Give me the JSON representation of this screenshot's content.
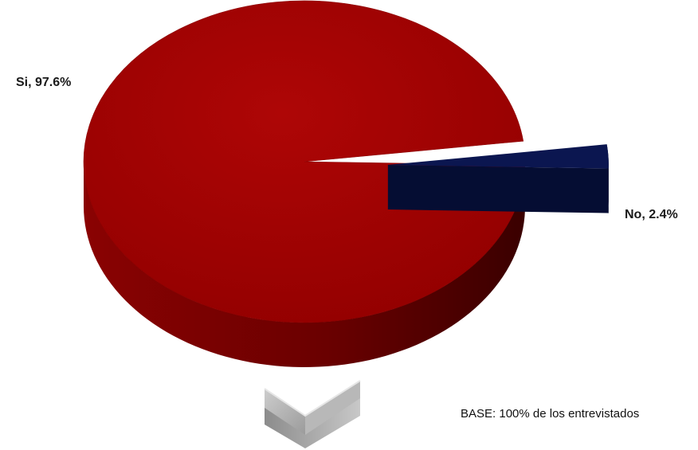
{
  "chart_data": {
    "type": "pie",
    "style": "3d-exploded",
    "categories": [
      "Si",
      "No"
    ],
    "values": [
      97.6,
      2.4
    ],
    "labels": [
      "Si, 97.6%",
      "No, 2.4%"
    ],
    "colors": [
      "#a00000",
      "#0b1650"
    ],
    "title": "",
    "legend": "none"
  },
  "footnote": "BASE: 100% de los entrevistados",
  "chevron_icon": "chevron-down-icon"
}
